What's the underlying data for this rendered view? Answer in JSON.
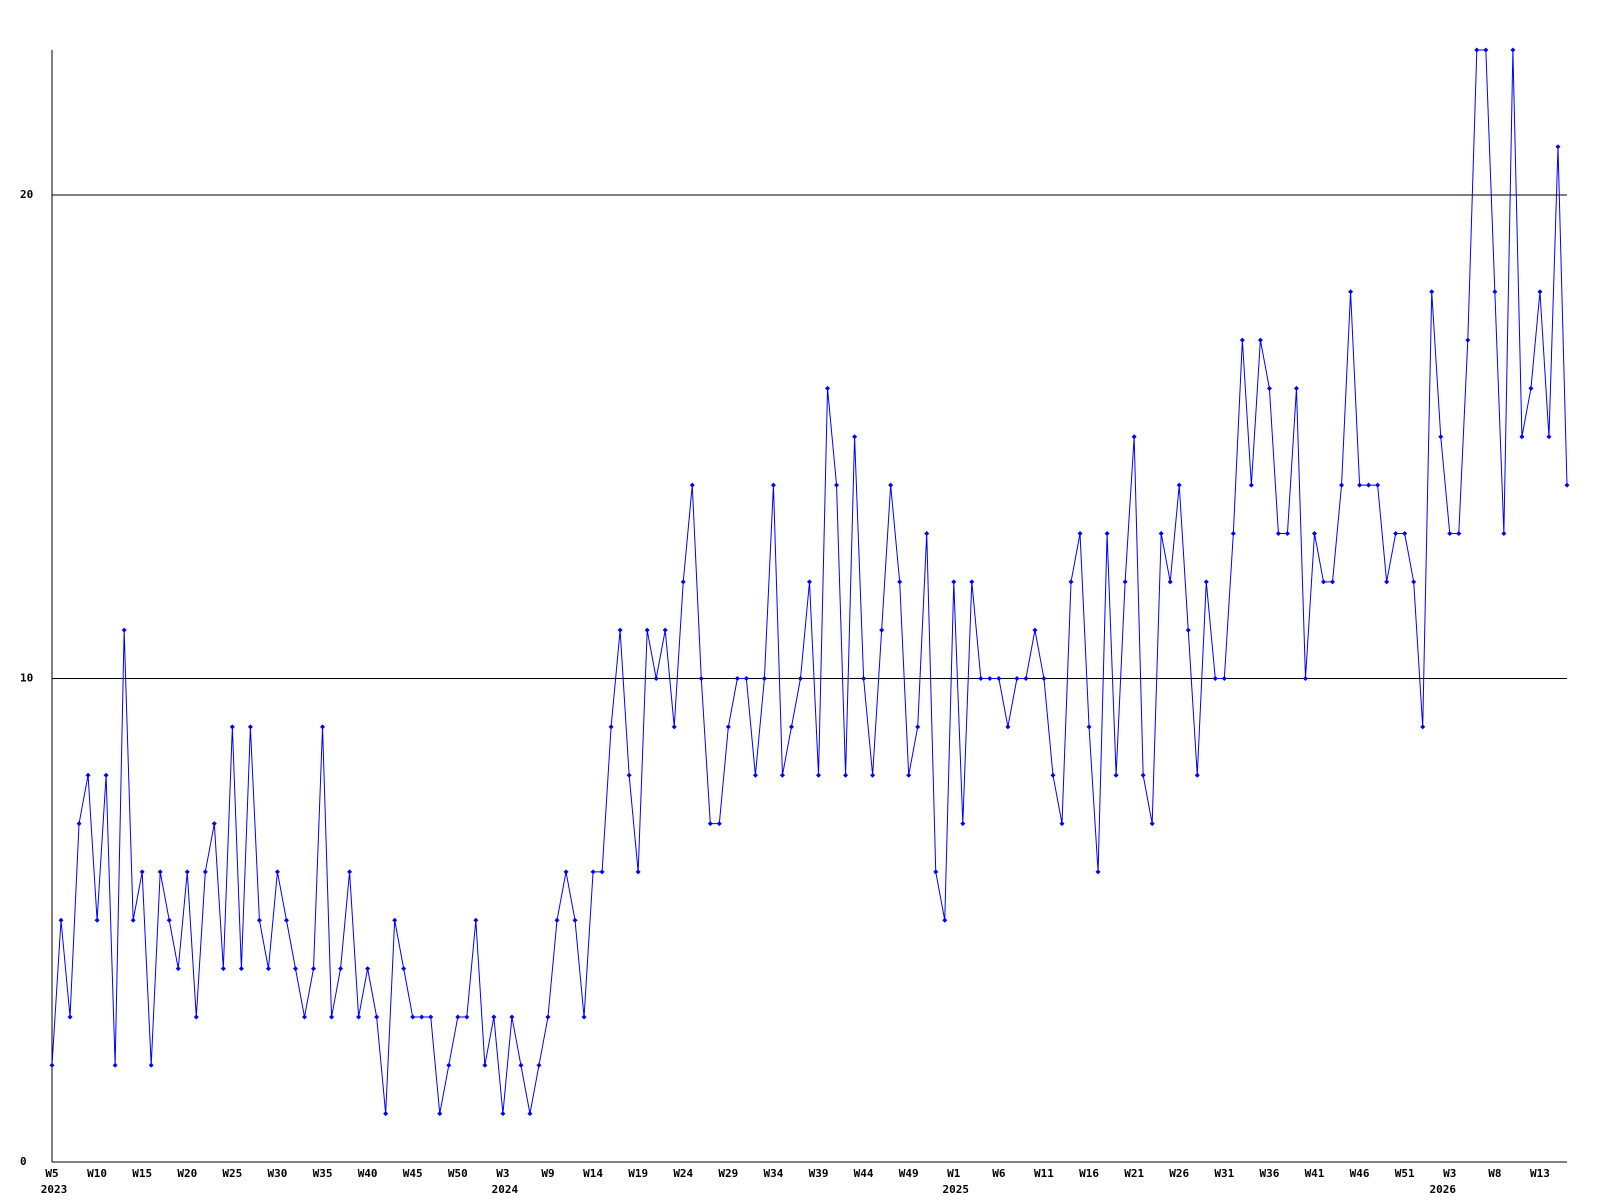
{
  "chart_data": {
    "type": "line",
    "categories": [
      "W5",
      null,
      null,
      null,
      null,
      "W10",
      null,
      null,
      null,
      null,
      "W15",
      null,
      null,
      null,
      null,
      "W20",
      null,
      null,
      null,
      null,
      "W25",
      null,
      null,
      null,
      null,
      "W30",
      null,
      null,
      null,
      null,
      "W35",
      null,
      null,
      null,
      null,
      "W40",
      null,
      null,
      null,
      null,
      "W45",
      null,
      null,
      null,
      null,
      "W50",
      null,
      null,
      null,
      null,
      "W3",
      null,
      null,
      null,
      null,
      "W9",
      null,
      null,
      null,
      null,
      "W14",
      null,
      null,
      null,
      null,
      "W19",
      null,
      null,
      null,
      null,
      "W24",
      null,
      null,
      null,
      null,
      "W29",
      null,
      null,
      null,
      null,
      "W34",
      null,
      null,
      null,
      null,
      "W39",
      null,
      null,
      null,
      null,
      "W44",
      null,
      null,
      null,
      null,
      "W49",
      null,
      null,
      null,
      null,
      "W1",
      null,
      null,
      null,
      null,
      "W6",
      null,
      null,
      null,
      null,
      "W11",
      null,
      null,
      null,
      null,
      "W16",
      null,
      null,
      null,
      null,
      "W21",
      null,
      null,
      null,
      null,
      "W26",
      null,
      null,
      null,
      null,
      "W31",
      null,
      null,
      null,
      null,
      "W36",
      null,
      null,
      null,
      null,
      "W41",
      null,
      null,
      null,
      null,
      "W46",
      null,
      null,
      null,
      null,
      "W51",
      null,
      null,
      null,
      null,
      "W3",
      null,
      null,
      null,
      null,
      "W8",
      null,
      null,
      null,
      null,
      "W13",
      null,
      null,
      null
    ],
    "year_labels": [
      "2023",
      null,
      null,
      null,
      null,
      null,
      null,
      null,
      null,
      null,
      null,
      null,
      null,
      null,
      null,
      null,
      null,
      null,
      null,
      null,
      null,
      null,
      null,
      null,
      null,
      null,
      null,
      null,
      null,
      null,
      null,
      null,
      null,
      null,
      null,
      null,
      null,
      null,
      null,
      null,
      null,
      null,
      null,
      null,
      null,
      null,
      null,
      null,
      null,
      null,
      "2024",
      null,
      null,
      null,
      null,
      null,
      null,
      null,
      null,
      null,
      null,
      null,
      null,
      null,
      null,
      null,
      null,
      null,
      null,
      null,
      null,
      null,
      null,
      null,
      null,
      null,
      null,
      null,
      null,
      null,
      null,
      null,
      null,
      null,
      null,
      null,
      null,
      null,
      null,
      null,
      null,
      null,
      null,
      null,
      null,
      null,
      null,
      null,
      null,
      null,
      "2025",
      null,
      null,
      null,
      null,
      null,
      null,
      null,
      null,
      null,
      null,
      null,
      null,
      null,
      null,
      null,
      null,
      null,
      null,
      null,
      null,
      null,
      null,
      null,
      null,
      null,
      null,
      null,
      null,
      null,
      null,
      null,
      null,
      null,
      null,
      null,
      null,
      null,
      null,
      null,
      null,
      null,
      null,
      null,
      null,
      null,
      null,
      null,
      null,
      null,
      null,
      null,
      null,
      null,
      "2026",
      null,
      null,
      null,
      null,
      null,
      null,
      null,
      null,
      null,
      null,
      null,
      null,
      null
    ],
    "values": [
      2,
      5,
      3,
      7,
      8,
      5,
      8,
      2,
      11,
      5,
      6,
      2,
      6,
      5,
      4,
      6,
      3,
      6,
      7,
      4,
      9,
      4,
      9,
      5,
      4,
      6,
      5,
      4,
      3,
      4,
      9,
      3,
      4,
      6,
      3,
      4,
      3,
      1,
      5,
      4,
      3,
      3,
      3,
      1,
      2,
      3,
      3,
      5,
      2,
      3,
      1,
      3,
      2,
      1,
      2,
      3,
      5,
      6,
      5,
      3,
      6,
      6,
      9,
      11,
      8,
      6,
      11,
      10,
      11,
      9,
      12,
      14,
      10,
      7,
      7,
      9,
      10,
      10,
      8,
      10,
      14,
      8,
      9,
      10,
      12,
      8,
      16,
      14,
      8,
      15,
      10,
      8,
      11,
      14,
      12,
      8,
      9,
      13,
      6,
      5,
      12,
      7,
      12,
      10,
      10,
      10,
      9,
      10,
      10,
      11,
      10,
      8,
      7,
      12,
      13,
      9,
      6,
      13,
      8,
      12,
      15,
      8,
      7,
      13,
      12,
      14,
      11,
      8,
      12,
      10,
      10,
      13,
      17,
      14,
      17,
      16,
      13,
      13,
      16,
      10,
      13,
      12,
      12,
      14,
      18,
      14,
      14,
      14,
      12,
      13,
      13,
      12,
      9,
      18,
      15,
      13,
      13,
      17,
      23,
      23,
      18,
      13,
      23,
      15,
      16,
      18,
      15,
      21,
      14
    ],
    "color": "#0000ff",
    "ylim": [
      0,
      23
    ],
    "yticks": [
      0,
      10,
      20
    ],
    "grid": true
  }
}
